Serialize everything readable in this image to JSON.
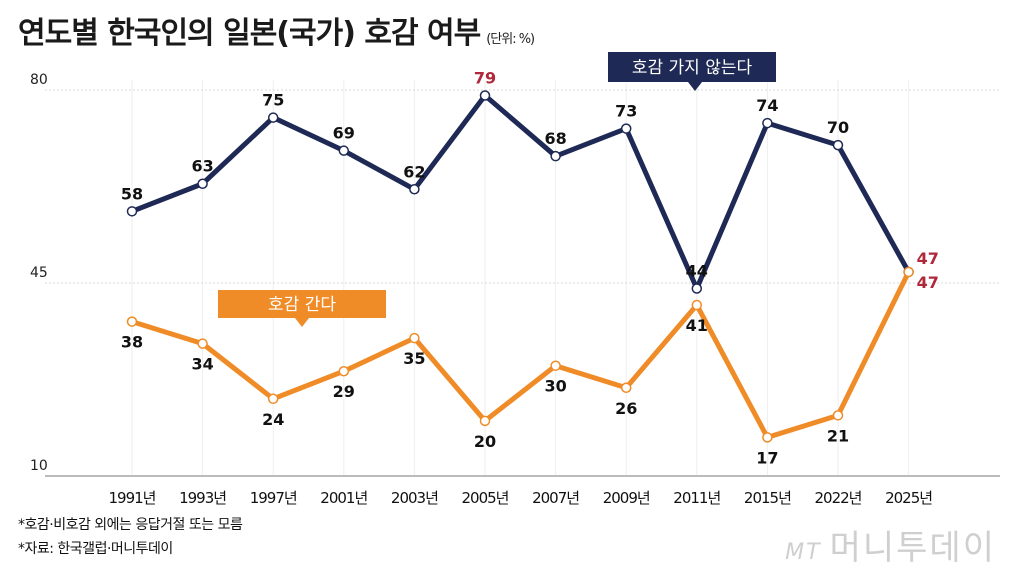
{
  "chart_data": {
    "type": "line",
    "title": "연도별 한국인의 일본(국가) 호감 여부",
    "unit": "(단위: %)",
    "categories": [
      "1991년",
      "1993년",
      "1997년",
      "2001년",
      "2003년",
      "2005년",
      "2007년",
      "2009년",
      "2011년",
      "2015년",
      "2022년",
      "2025년"
    ],
    "yticks": [
      80,
      45,
      10
    ],
    "ylim": [
      10,
      80
    ],
    "grid": true,
    "series": [
      {
        "name": "호감 가지 않는다",
        "color": "#1e2a55",
        "values": [
          58,
          63,
          75,
          69,
          62,
          79,
          68,
          73,
          44,
          74,
          70,
          47
        ],
        "highlight": [
          5,
          11
        ]
      },
      {
        "name": "호감 간다",
        "color": "#f08c28",
        "values": [
          38,
          34,
          24,
          29,
          35,
          20,
          30,
          26,
          41,
          17,
          21,
          47
        ],
        "highlight": [
          11
        ]
      }
    ],
    "highlight_color": "#b0283a"
  },
  "notes": [
    "*호감·비호감 외에는 응답거절 또는 모름",
    "*자료: 한국갤럽·머니투데이"
  ],
  "watermark": {
    "prefix": "MT",
    "text": "머니투데이"
  }
}
